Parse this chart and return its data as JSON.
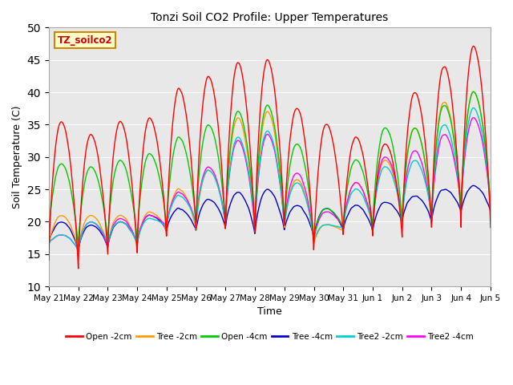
{
  "title": "Tonzi Soil CO2 Profile: Upper Temperatures",
  "xlabel": "Time",
  "ylabel": "Soil Temperature (C)",
  "ylim": [
    10,
    50
  ],
  "background_color": "#e8e8e8",
  "annotation_text": "TZ_soilco2",
  "annotation_bg": "#ffffcc",
  "annotation_border": "#cc8800",
  "annotation_text_color": "#cc0000",
  "x_tick_labels": [
    "May 21",
    "May 22",
    "May 23",
    "May 24",
    "May 25",
    "May 26",
    "May 27",
    "May 28",
    "May 29",
    "May 30",
    "May 31",
    "Jun 1",
    "Jun 2",
    "Jun 3",
    "Jun 4",
    "Jun 5"
  ],
  "series_colors": [
    "#ff0000",
    "#ff9900",
    "#00cc00",
    "#0000cc",
    "#00cccc",
    "#ff00ff"
  ],
  "series_labels": [
    "Open -2cm",
    "Tree -2cm",
    "Open -4cm",
    "Tree -4cm",
    "Tree2 -2cm",
    "Tree2 -4cm"
  ],
  "yticks": [
    10,
    15,
    20,
    25,
    30,
    35,
    40,
    45,
    50
  ],
  "open2_peaks": [
    35.5,
    33.5,
    35.5,
    36.0,
    40.5,
    42.5,
    44.5,
    45.0,
    37.5,
    35.0,
    33.0,
    32.0,
    40.0,
    44.0,
    47.0
  ],
  "open2_troughs": [
    14.0,
    12.5,
    14.5,
    14.5,
    17.0,
    18.0,
    18.0,
    17.5,
    18.5,
    15.0,
    17.5,
    17.5,
    17.5,
    19.0,
    19.0
  ],
  "tree2_peaks": [
    21.0,
    21.0,
    21.0,
    21.5,
    25.0,
    28.0,
    36.0,
    37.0,
    26.5,
    19.5,
    26.0,
    29.5,
    34.5,
    38.5,
    40.0
  ],
  "tree2_troughs": [
    16.0,
    15.5,
    16.0,
    16.0,
    18.5,
    18.5,
    19.5,
    18.0,
    18.5,
    16.5,
    18.5,
    18.5,
    19.5,
    19.5,
    22.0
  ],
  "open4_peaks": [
    29.0,
    28.5,
    29.5,
    30.5,
    33.0,
    35.0,
    37.0,
    38.0,
    32.0,
    22.0,
    29.5,
    34.5,
    34.5,
    38.0,
    40.0
  ],
  "open4_troughs": [
    17.5,
    16.0,
    17.0,
    17.0,
    19.0,
    19.5,
    19.5,
    19.0,
    19.0,
    17.0,
    19.0,
    19.0,
    20.0,
    20.0,
    22.0
  ],
  "tree4_peaks": [
    20.0,
    19.5,
    20.0,
    21.0,
    22.0,
    23.5,
    24.5,
    25.0,
    22.5,
    22.0,
    22.5,
    23.0,
    24.0,
    25.0,
    25.5
  ],
  "tree4_troughs": [
    16.5,
    15.5,
    16.0,
    16.5,
    18.5,
    18.5,
    19.0,
    18.0,
    18.5,
    17.5,
    18.5,
    18.5,
    20.0,
    20.0,
    21.5
  ],
  "t22_peaks": [
    18.0,
    20.0,
    20.0,
    20.5,
    24.0,
    28.0,
    33.0,
    34.0,
    26.0,
    19.5,
    25.0,
    28.5,
    29.5,
    35.0,
    37.5
  ],
  "t22_troughs": [
    16.5,
    15.5,
    16.5,
    16.5,
    19.0,
    19.5,
    19.5,
    19.0,
    19.0,
    17.0,
    19.0,
    19.0,
    20.0,
    20.5,
    22.0
  ],
  "t24_peaks": [
    18.0,
    20.0,
    20.5,
    21.0,
    24.5,
    28.5,
    32.5,
    33.5,
    27.5,
    21.5,
    26.0,
    30.0,
    31.0,
    33.5,
    36.0
  ],
  "t24_troughs": [
    16.5,
    15.5,
    16.0,
    16.5,
    19.0,
    19.5,
    19.5,
    18.5,
    19.0,
    17.0,
    19.0,
    19.0,
    20.0,
    20.0,
    22.0
  ]
}
